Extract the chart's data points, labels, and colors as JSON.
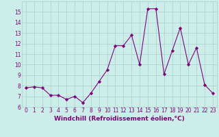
{
  "x": [
    0,
    1,
    2,
    3,
    4,
    5,
    6,
    7,
    8,
    9,
    10,
    11,
    12,
    13,
    14,
    15,
    16,
    17,
    18,
    19,
    20,
    21,
    22,
    23
  ],
  "y": [
    7.8,
    7.9,
    7.8,
    7.1,
    7.1,
    6.7,
    7.0,
    6.4,
    7.3,
    8.4,
    9.5,
    11.8,
    11.8,
    12.8,
    10.0,
    15.3,
    15.3,
    9.1,
    11.3,
    13.5,
    10.0,
    11.6,
    8.1,
    7.3
  ],
  "line_color": "#800080",
  "marker": "D",
  "marker_size": 2.2,
  "bg_color": "#cceee8",
  "grid_color": "#aacccc",
  "xlabel": "Windchill (Refroidissement éolien,°C)",
  "ylim": [
    6,
    16
  ],
  "xlim_min": -0.5,
  "xlim_max": 23.5,
  "yticks": [
    6,
    7,
    8,
    9,
    10,
    11,
    12,
    13,
    14,
    15
  ],
  "xticks": [
    0,
    1,
    2,
    3,
    4,
    5,
    6,
    7,
    8,
    9,
    10,
    11,
    12,
    13,
    14,
    15,
    16,
    17,
    18,
    19,
    20,
    21,
    22,
    23
  ],
  "font_color": "#800080",
  "tick_label_size": 5.5,
  "xlabel_size": 6.5,
  "linewidth": 0.8
}
